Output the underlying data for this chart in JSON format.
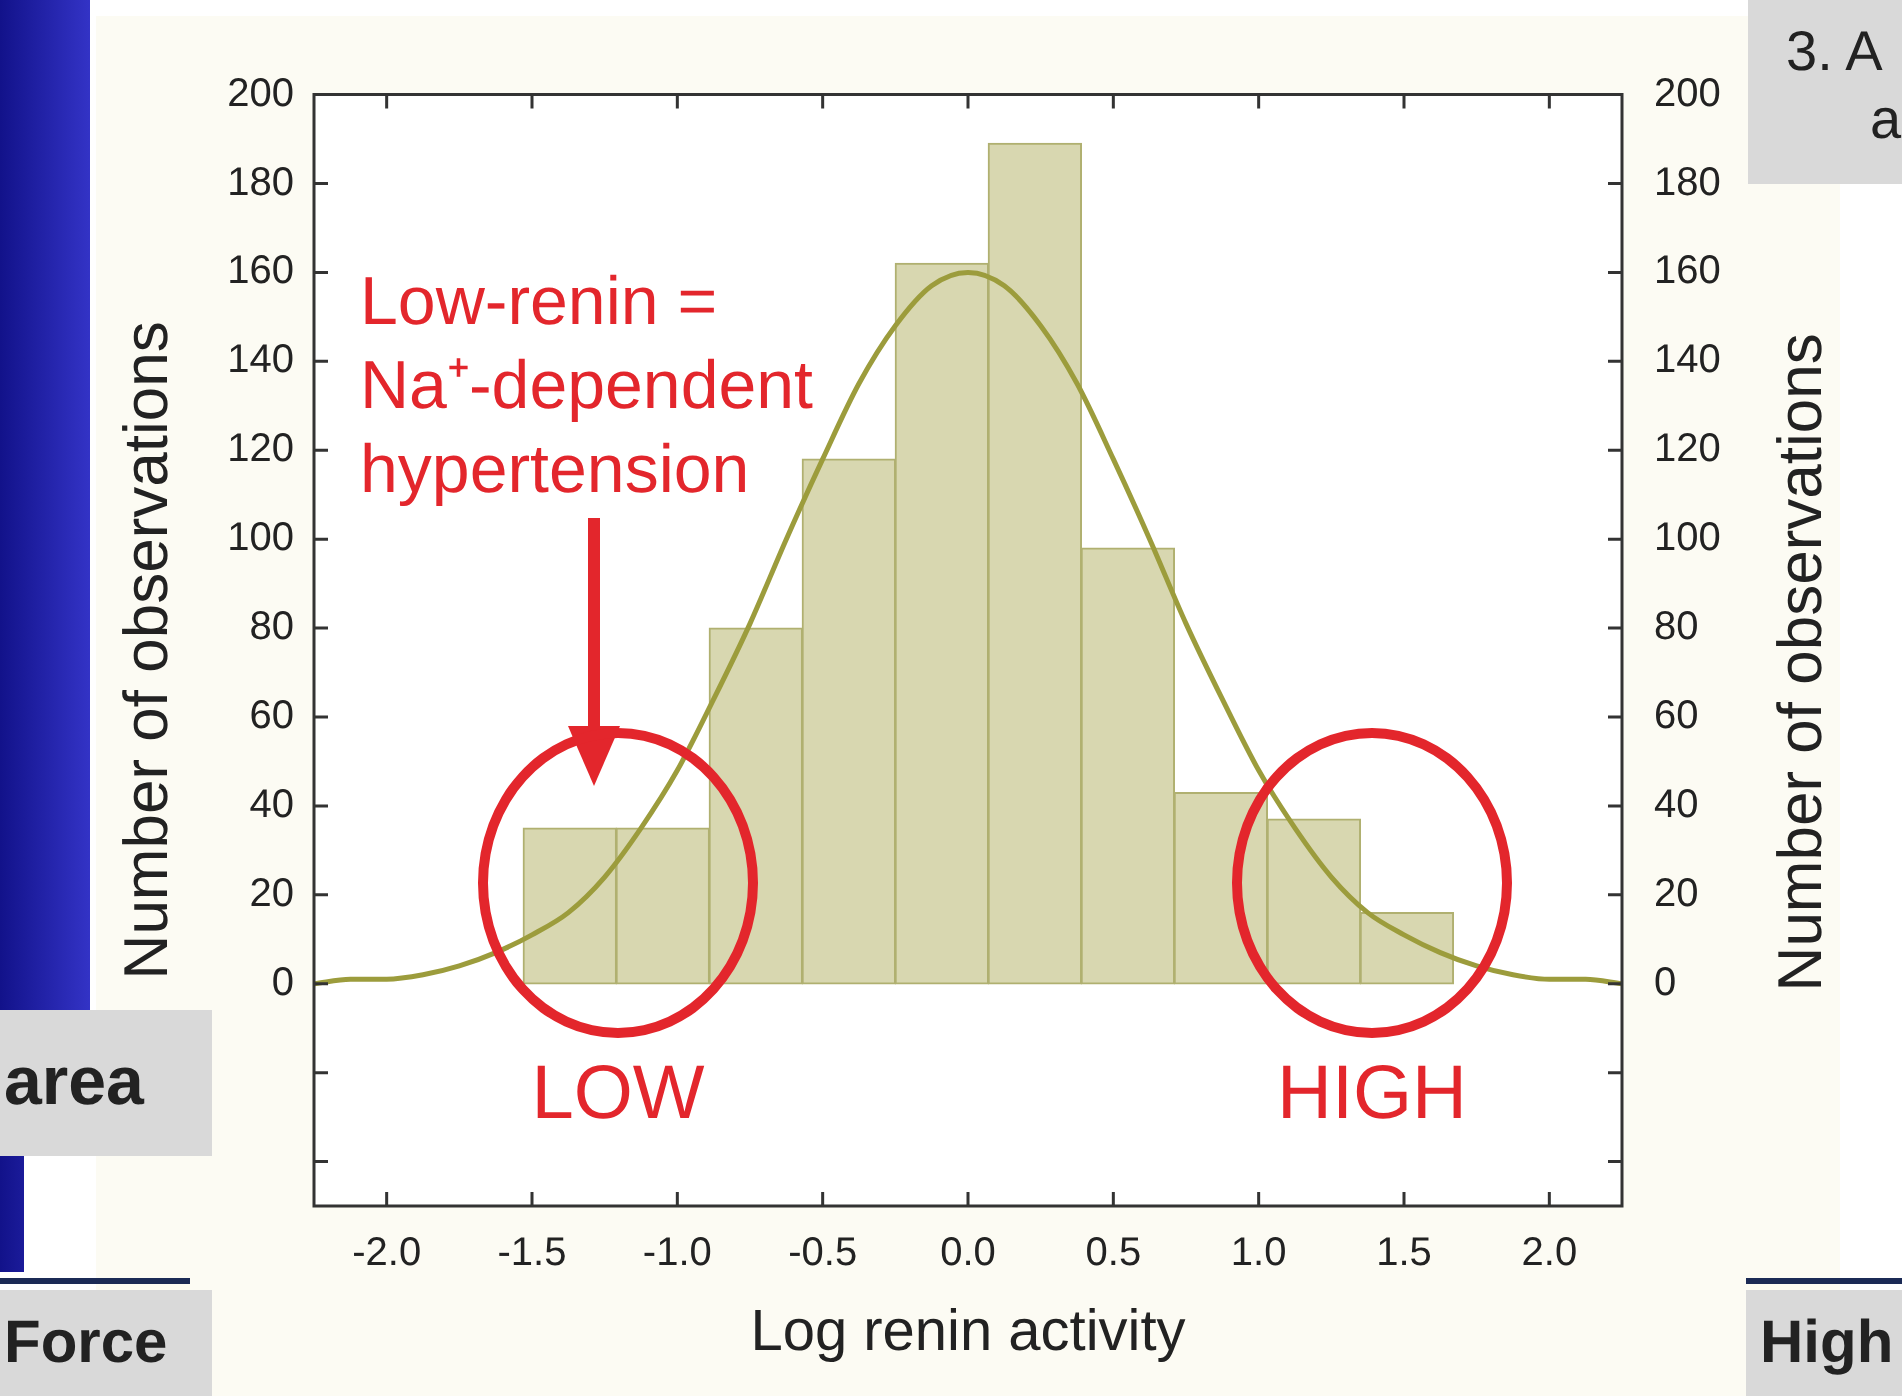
{
  "chart_data": {
    "type": "histogram",
    "xlabel": "Log renin activity",
    "ylabel": "Number of observations",
    "y2label": "Number of observations",
    "bins": [
      -1.53,
      -1.21,
      -0.89,
      -0.57,
      -0.25,
      0.07,
      0.39,
      0.71,
      1.03,
      1.35,
      1.67
    ],
    "series": [
      {
        "color": "#d8d7b0",
        "values": [
          35,
          35,
          80,
          118,
          162,
          189,
          98,
          43,
          37,
          16
        ]
      },
      {
        "type": "line",
        "color": "#9c9c3c",
        "x": [
          -2.25,
          -2.125,
          -2,
          -1.875,
          -1.75,
          -1.625,
          -1.5,
          -1.375,
          -1.25,
          -1.125,
          -1,
          -0.875,
          -0.75,
          -0.625,
          -0.5,
          -0.375,
          -0.25,
          -0.125,
          0,
          0.125,
          0.25,
          0.375,
          0.5,
          0.625,
          0.75,
          0.875,
          1,
          1.125,
          1.25,
          1.375,
          1.5,
          1.625,
          1.75,
          1.875,
          2,
          2.125,
          2.25
        ],
        "values": [
          0,
          1,
          1,
          2,
          4,
          7,
          11,
          16,
          24,
          35,
          48,
          64,
          81,
          100,
          118,
          135,
          148,
          157,
          160,
          157,
          148,
          135,
          118,
          100,
          81,
          64,
          48,
          35,
          24,
          16,
          11,
          7,
          4,
          2,
          1,
          1,
          0
        ]
      }
    ],
    "xlim": [
      -2.25,
      2.25
    ],
    "xticks": [
      {
        "value": -2,
        "label": "-2.0"
      },
      {
        "value": -1.5,
        "label": "-1.5"
      },
      {
        "value": -1,
        "label": "-1.0"
      },
      {
        "value": -0.5,
        "label": "-0.5"
      },
      {
        "value": 0,
        "label": "0.0"
      },
      {
        "value": 0.5,
        "label": "0.5"
      },
      {
        "value": 1,
        "label": "1.0"
      },
      {
        "value": 1.5,
        "label": "1.5"
      },
      {
        "value": 2,
        "label": "2.0"
      }
    ],
    "ylim": [
      -50,
      200
    ],
    "yticks": [
      {
        "value": -40,
        "label": null
      },
      {
        "value": -20,
        "label": null
      },
      0,
      20,
      40,
      60,
      80,
      100,
      120,
      140,
      160,
      180,
      200
    ],
    "y2lim": [
      -50,
      200
    ],
    "y2ticks": [
      {
        "value": -40,
        "label": null
      },
      {
        "value": -20,
        "label": null
      },
      0,
      20,
      40,
      60,
      80,
      100,
      120,
      140,
      160,
      180,
      200
    ],
    "marker": "none",
    "annotations": [
      "Low-renin = Na⁺-dependent hypertension",
      "LOW",
      "HIGH",
      "3. A",
      "a",
      "area",
      "Force",
      "High"
    ]
  }
}
